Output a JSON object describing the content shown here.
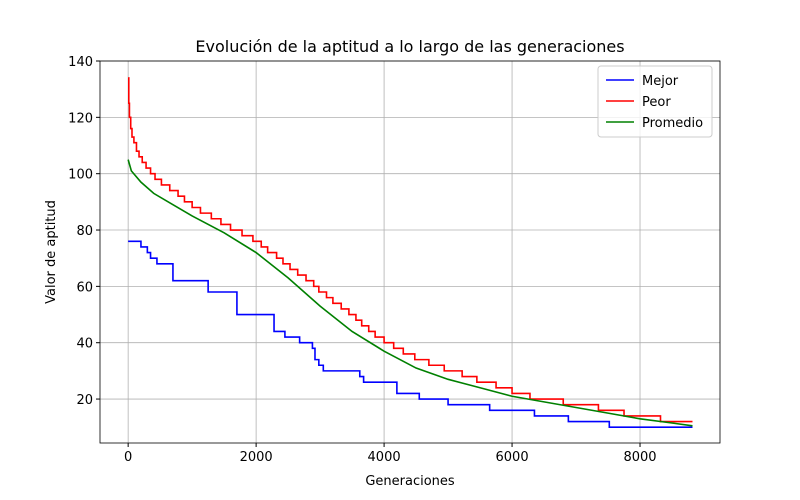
{
  "chart_data": {
    "type": "line",
    "title": "Evolución de la aptitud a lo largo de las generaciones",
    "xlabel": "Generaciones",
    "ylabel": "Valor de aptitud",
    "xlim": [
      -440,
      9250
    ],
    "ylim": [
      4.4,
      140
    ],
    "xticks": [
      0,
      2000,
      4000,
      6000,
      8000
    ],
    "yticks": [
      20,
      40,
      60,
      80,
      100,
      120,
      140
    ],
    "grid": true,
    "legend": "upper right",
    "series": [
      {
        "name": "Mejor",
        "color": "#0000ff",
        "drawstyle": "steps-post",
        "x": [
          0,
          200,
          300,
          350,
          450,
          700,
          1250,
          1700,
          2280,
          2450,
          2680,
          2880,
          2920,
          2980,
          3050,
          3620,
          3680,
          4200,
          4550,
          5000,
          5650,
          6350,
          6880,
          7520,
          8820
        ],
        "values": [
          76,
          74,
          72,
          70,
          68,
          62,
          58,
          50,
          44,
          42,
          40,
          38,
          34,
          32,
          30,
          28,
          26,
          22,
          20,
          18,
          16,
          14,
          12,
          10,
          10
        ]
      },
      {
        "name": "Peor",
        "color": "#ff0000",
        "drawstyle": "steps-post",
        "x": [
          0,
          10,
          20,
          40,
          60,
          90,
          130,
          170,
          220,
          280,
          350,
          420,
          520,
          650,
          780,
          880,
          1000,
          1130,
          1300,
          1450,
          1600,
          1780,
          1950,
          2080,
          2180,
          2320,
          2420,
          2530,
          2650,
          2780,
          2900,
          2980,
          3100,
          3200,
          3330,
          3450,
          3560,
          3650,
          3760,
          3860,
          4000,
          4150,
          4300,
          4480,
          4700,
          4940,
          5220,
          5450,
          5750,
          6000,
          6280,
          6800,
          7350,
          7750,
          8320,
          8820
        ],
        "values": [
          134,
          125,
          120,
          116,
          113,
          111,
          108,
          106,
          104,
          102,
          100,
          98,
          96,
          94,
          92,
          90,
          88,
          86,
          84,
          82,
          80,
          78,
          76,
          74,
          72,
          70,
          68,
          66,
          64,
          62,
          60,
          58,
          56,
          54,
          52,
          50,
          48,
          46,
          44,
          42,
          40,
          38,
          36,
          34,
          32,
          30,
          28,
          26,
          24,
          22,
          20,
          18,
          16,
          14,
          12,
          12
        ]
      },
      {
        "name": "Promedio",
        "color": "#008000",
        "drawstyle": "default",
        "x": [
          0,
          50,
          200,
          400,
          700,
          1000,
          1500,
          2000,
          2500,
          3000,
          3500,
          4000,
          4500,
          5000,
          5500,
          6000,
          6500,
          7000,
          7500,
          8000,
          8500,
          8820
        ],
        "values": [
          105,
          101,
          97,
          93,
          89,
          85,
          79,
          72,
          63,
          53,
          44,
          37,
          31,
          27,
          24,
          21,
          19,
          17,
          15,
          13,
          11.5,
          10.5
        ]
      }
    ]
  }
}
